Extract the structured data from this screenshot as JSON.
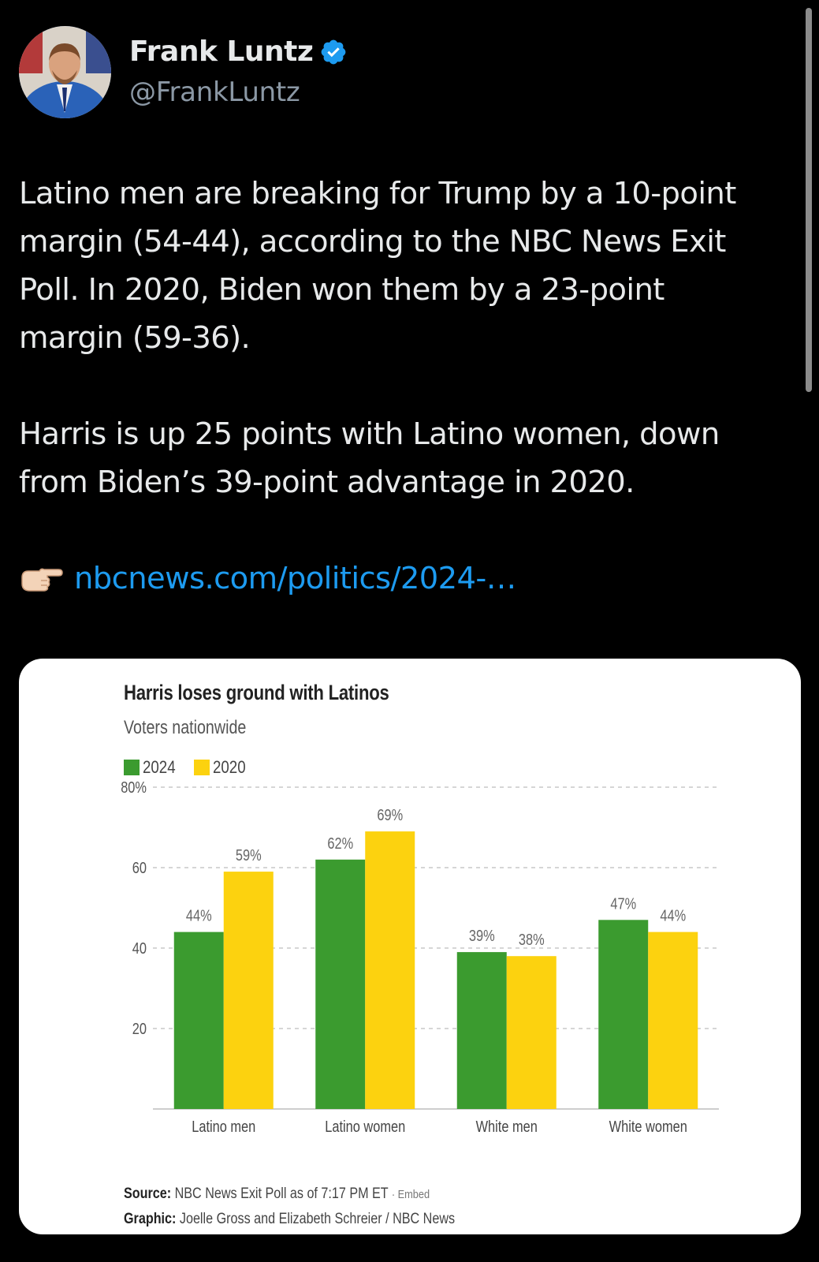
{
  "author": {
    "name": "Frank Luntz",
    "handle": "@FrankLuntz",
    "verified": true,
    "avatar_icon": "profile-photo"
  },
  "tweet": {
    "line1": "Latino men are breaking for Trump by a 10-point",
    "line2": "margin (54-44), according to the NBC News Exit",
    "line3": "Poll.  In 2020, Biden won them by a 23-point",
    "line4": "margin (59-36).",
    "line5": "Harris is up 25 points with Latino women, down",
    "line6": "from Biden’s 39-point advantage in 2020.",
    "link_emoji": "👉🏻",
    "link_text": "nbcnews.com/politics/2024-…"
  },
  "colors": {
    "accent_blue": "#1d9bf0",
    "series_2024": "#3b9b2f",
    "series_2020": "#fcd20f"
  },
  "chart_data": {
    "type": "bar",
    "title": "Harris loses ground with Latinos",
    "subtitle": "Voters nationwide",
    "categories": [
      "Latino men",
      "Latino women",
      "White men",
      "White women"
    ],
    "series": [
      {
        "name": "2024",
        "values": [
          44,
          62,
          39,
          47
        ],
        "labels": [
          "44%",
          "62%",
          "39%",
          "47%"
        ]
      },
      {
        "name": "2020",
        "values": [
          59,
          69,
          38,
          44
        ],
        "labels": [
          "59%",
          "69%",
          "38%",
          "44%"
        ]
      }
    ],
    "ylim": [
      0,
      80
    ],
    "yticks": [
      20,
      40,
      60,
      80
    ],
    "ytick_labels": [
      "20",
      "40",
      "60",
      "80%"
    ],
    "grid": true,
    "legend": "top-left",
    "source_label": "Source:",
    "source_text": "NBC News Exit Poll as of 7:17 PM ET",
    "embed_text": "· Embed",
    "graphic_label": "Graphic:",
    "graphic_text": "Joelle Gross and Elizabeth Schreier / NBC News"
  }
}
